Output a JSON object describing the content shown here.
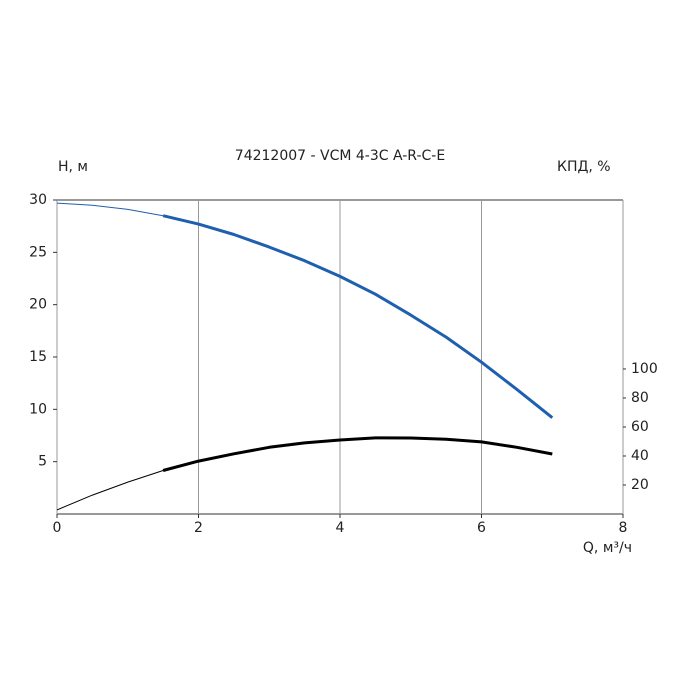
{
  "chart_data": {
    "type": "line",
    "title": "74212007 - VCM 4-3C A-R-C-E",
    "ylabel": "H, м",
    "y2label": "КПД, %",
    "xlabel": "Q, м³/ч",
    "x": [
      0,
      0.5,
      1,
      1.5,
      2,
      2.5,
      3,
      3.5,
      4,
      4.5,
      5,
      5.5,
      6,
      6.5,
      7
    ],
    "xlim": [
      0,
      8
    ],
    "xticks": [
      0,
      2,
      4,
      6,
      8
    ],
    "ylim": [
      0,
      30
    ],
    "yticks": [
      5,
      10,
      15,
      20,
      25,
      30
    ],
    "y2lim": [
      0,
      216.5
    ],
    "y2ticks": [
      20,
      40,
      60,
      80,
      100
    ],
    "grid": "x",
    "series": [
      {
        "color": "#1f5fb0",
        "line_width": 1,
        "values": [
          29.7,
          29.5,
          29.1,
          28.5,
          null,
          null,
          null,
          null,
          null,
          null,
          null,
          null,
          null,
          null,
          null
        ]
      },
      {
        "color": "#1f5fb0",
        "line_width": 3,
        "values": [
          null,
          null,
          null,
          28.5,
          27.7,
          26.7,
          25.5,
          24.2,
          22.7,
          21,
          19,
          16.9,
          14.5,
          11.9,
          9.2
        ]
      },
      {
        "color": "#000000",
        "line_width": 1,
        "axis": "y2",
        "values": [
          2.8,
          13,
          22,
          30,
          null,
          null,
          null,
          null,
          null,
          null,
          null,
          null,
          null,
          null,
          null
        ]
      },
      {
        "color": "#000000",
        "line_width": 3,
        "axis": "y2",
        "values": [
          null,
          null,
          null,
          30,
          36.5,
          41.5,
          46,
          49,
          51,
          52.5,
          52.4,
          51.5,
          49.7,
          46,
          41.4
        ]
      }
    ]
  }
}
